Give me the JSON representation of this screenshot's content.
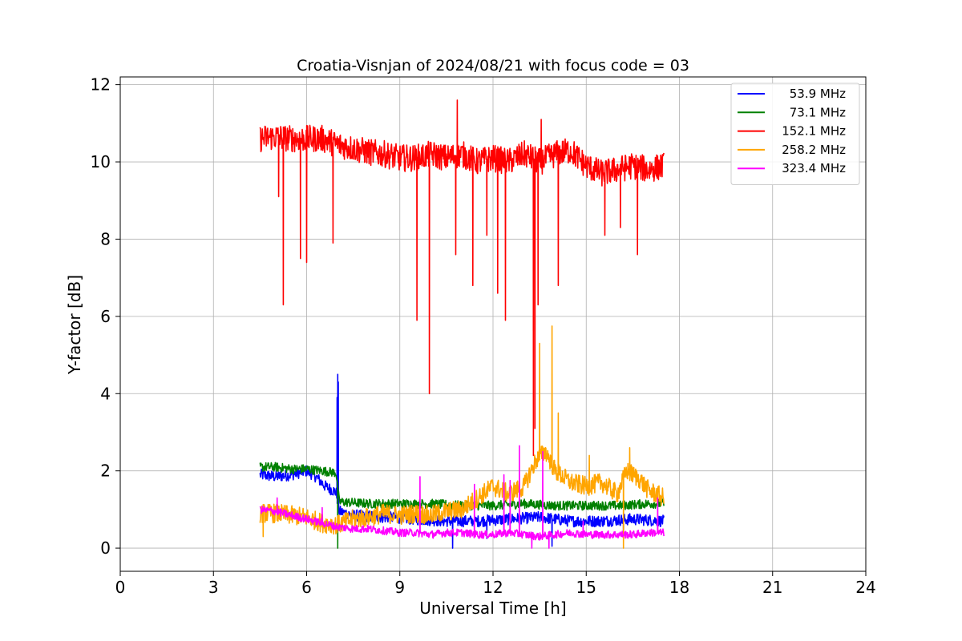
{
  "chart_data": {
    "type": "line",
    "title": "Croatia-Visnjan of 2024/08/21 with focus code = 03",
    "xlabel": "Universal Time [h]",
    "ylabel": "Y-factor [dB]",
    "xlim": [
      0,
      24
    ],
    "ylim": [
      -0.6,
      12.2
    ],
    "xticks": [
      0,
      3,
      6,
      9,
      12,
      15,
      18,
      21,
      24
    ],
    "yticks": [
      0,
      2,
      4,
      6,
      8,
      10,
      12
    ],
    "grid": true,
    "legend_position": "top-right",
    "series": [
      {
        "name": "53.9 MHz",
        "color": "#0000ff",
        "base": [
          [
            4.5,
            1.9
          ],
          [
            5.0,
            1.85
          ],
          [
            5.5,
            1.9
          ],
          [
            6.0,
            2.0
          ],
          [
            6.3,
            1.85
          ],
          [
            6.6,
            1.6
          ],
          [
            6.95,
            1.45
          ],
          [
            7.05,
            0.95
          ],
          [
            7.5,
            0.85
          ],
          [
            8.5,
            0.8
          ],
          [
            9.5,
            0.75
          ],
          [
            10.5,
            0.7
          ],
          [
            11.5,
            0.7
          ],
          [
            12.5,
            0.75
          ],
          [
            13.5,
            0.8
          ],
          [
            14.5,
            0.7
          ],
          [
            15.5,
            0.7
          ],
          [
            16.5,
            0.75
          ],
          [
            17.5,
            0.7
          ]
        ],
        "noise": 0.15,
        "spikes": [
          [
            7.0,
            4.5
          ],
          [
            7.02,
            4.3
          ],
          [
            6.98,
            3.9
          ],
          [
            10.7,
            0.0
          ],
          [
            11.8,
            0.25
          ],
          [
            13.9,
            0.05
          ],
          [
            16.2,
            0.3
          ]
        ]
      },
      {
        "name": "73.1 MHz",
        "color": "#008000",
        "base": [
          [
            4.5,
            2.1
          ],
          [
            5.0,
            2.1
          ],
          [
            5.5,
            2.05
          ],
          [
            6.0,
            2.05
          ],
          [
            6.5,
            2.0
          ],
          [
            6.95,
            1.95
          ],
          [
            7.05,
            1.2
          ],
          [
            8.0,
            1.15
          ],
          [
            9.0,
            1.15
          ],
          [
            10.0,
            1.15
          ],
          [
            11.0,
            1.1
          ],
          [
            12.0,
            1.1
          ],
          [
            13.0,
            1.15
          ],
          [
            14.0,
            1.1
          ],
          [
            15.0,
            1.1
          ],
          [
            16.0,
            1.1
          ],
          [
            17.0,
            1.15
          ],
          [
            17.5,
            1.15
          ]
        ],
        "noise": 0.12,
        "spikes": [
          [
            7.0,
            0.0
          ]
        ]
      },
      {
        "name": "152.1 MHz",
        "color": "#ff0000",
        "base": [
          [
            4.5,
            10.6
          ],
          [
            5.0,
            10.65
          ],
          [
            5.5,
            10.6
          ],
          [
            6.0,
            10.6
          ],
          [
            6.5,
            10.6
          ],
          [
            7.0,
            10.45
          ],
          [
            7.5,
            10.35
          ],
          [
            8.0,
            10.25
          ],
          [
            8.5,
            10.2
          ],
          [
            9.0,
            10.1
          ],
          [
            9.5,
            10.1
          ],
          [
            10.0,
            10.2
          ],
          [
            10.5,
            10.1
          ],
          [
            11.0,
            10.2
          ],
          [
            11.5,
            10.0
          ],
          [
            12.0,
            10.1
          ],
          [
            12.5,
            10.0
          ],
          [
            13.0,
            10.2
          ],
          [
            13.5,
            10.0
          ],
          [
            14.0,
            10.2
          ],
          [
            14.5,
            10.3
          ],
          [
            15.0,
            9.9
          ],
          [
            15.5,
            9.7
          ],
          [
            16.0,
            9.8
          ],
          [
            16.5,
            9.9
          ],
          [
            17.0,
            9.8
          ],
          [
            17.5,
            9.9
          ]
        ],
        "noise": 0.35,
        "spikes": [
          [
            5.1,
            9.1
          ],
          [
            5.25,
            6.3
          ],
          [
            5.8,
            7.5
          ],
          [
            6.0,
            7.4
          ],
          [
            6.85,
            7.9
          ],
          [
            9.55,
            5.9
          ],
          [
            9.95,
            4.0
          ],
          [
            10.85,
            11.6
          ],
          [
            11.35,
            6.8
          ],
          [
            12.15,
            6.6
          ],
          [
            12.4,
            5.9
          ],
          [
            13.3,
            2.4
          ],
          [
            13.35,
            3.1
          ],
          [
            13.45,
            6.3
          ],
          [
            13.55,
            11.1
          ],
          [
            14.1,
            6.8
          ],
          [
            15.6,
            8.1
          ],
          [
            16.1,
            8.3
          ],
          [
            16.65,
            7.6
          ],
          [
            10.8,
            7.6
          ],
          [
            11.8,
            8.1
          ]
        ]
      },
      {
        "name": "258.2 MHz",
        "color": "#ffa500",
        "base": [
          [
            4.5,
            0.9
          ],
          [
            5.0,
            0.9
          ],
          [
            5.5,
            0.85
          ],
          [
            6.0,
            0.8
          ],
          [
            6.5,
            0.65
          ],
          [
            7.0,
            0.6
          ],
          [
            7.5,
            0.75
          ],
          [
            8.0,
            0.8
          ],
          [
            8.5,
            0.9
          ],
          [
            9.0,
            0.85
          ],
          [
            9.5,
            0.9
          ],
          [
            10.0,
            0.85
          ],
          [
            10.5,
            0.95
          ],
          [
            11.0,
            1.0
          ],
          [
            11.5,
            1.3
          ],
          [
            12.0,
            1.6
          ],
          [
            12.5,
            1.4
          ],
          [
            13.0,
            1.6
          ],
          [
            13.4,
            2.3
          ],
          [
            13.7,
            2.5
          ],
          [
            14.0,
            2.0
          ],
          [
            14.5,
            1.7
          ],
          [
            15.0,
            1.6
          ],
          [
            15.5,
            1.7
          ],
          [
            16.0,
            1.4
          ],
          [
            16.3,
            2.0
          ],
          [
            16.7,
            1.8
          ],
          [
            17.0,
            1.5
          ],
          [
            17.5,
            1.3
          ]
        ],
        "noise": 0.25,
        "spikes": [
          [
            4.6,
            0.3
          ],
          [
            13.5,
            5.3
          ],
          [
            13.9,
            5.75
          ],
          [
            14.1,
            3.5
          ],
          [
            15.1,
            2.4
          ],
          [
            16.2,
            0.0
          ],
          [
            16.4,
            2.6
          ]
        ]
      },
      {
        "name": "323.4 MHz",
        "color": "#ff00ff",
        "base": [
          [
            4.5,
            1.0
          ],
          [
            5.0,
            0.95
          ],
          [
            5.5,
            0.85
          ],
          [
            6.0,
            0.75
          ],
          [
            6.5,
            0.65
          ],
          [
            7.0,
            0.55
          ],
          [
            7.5,
            0.5
          ],
          [
            8.0,
            0.5
          ],
          [
            8.5,
            0.45
          ],
          [
            9.0,
            0.4
          ],
          [
            9.5,
            0.4
          ],
          [
            10.0,
            0.35
          ],
          [
            10.5,
            0.4
          ],
          [
            11.0,
            0.4
          ],
          [
            11.5,
            0.35
          ],
          [
            12.0,
            0.35
          ],
          [
            12.5,
            0.4
          ],
          [
            13.0,
            0.35
          ],
          [
            13.5,
            0.3
          ],
          [
            14.0,
            0.35
          ],
          [
            14.5,
            0.4
          ],
          [
            15.0,
            0.35
          ],
          [
            15.5,
            0.35
          ],
          [
            16.0,
            0.35
          ],
          [
            16.5,
            0.35
          ],
          [
            17.0,
            0.4
          ],
          [
            17.5,
            0.4
          ]
        ],
        "noise": 0.1,
        "spikes": [
          [
            5.05,
            1.3
          ],
          [
            6.5,
            1.05
          ],
          [
            9.65,
            1.85
          ],
          [
            11.4,
            1.65
          ],
          [
            12.35,
            1.9
          ],
          [
            12.55,
            1.75
          ],
          [
            12.85,
            2.65
          ],
          [
            13.25,
            0.0
          ],
          [
            13.6,
            2.5
          ],
          [
            13.8,
            0.0
          ],
          [
            14.9,
            0.7
          ],
          [
            17.3,
            1.3
          ]
        ]
      }
    ]
  }
}
